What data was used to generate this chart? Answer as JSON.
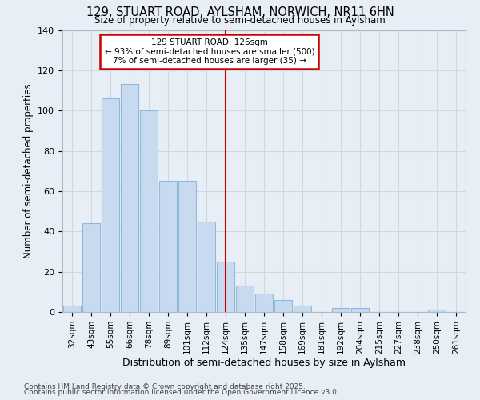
{
  "title1": "129, STUART ROAD, AYLSHAM, NORWICH, NR11 6HN",
  "title2": "Size of property relative to semi-detached houses in Aylsham",
  "xlabel": "Distribution of semi-detached houses by size in Aylsham",
  "ylabel": "Number of semi-detached properties",
  "categories": [
    "32sqm",
    "43sqm",
    "55sqm",
    "66sqm",
    "78sqm",
    "89sqm",
    "101sqm",
    "112sqm",
    "124sqm",
    "135sqm",
    "147sqm",
    "158sqm",
    "169sqm",
    "181sqm",
    "192sqm",
    "204sqm",
    "215sqm",
    "227sqm",
    "238sqm",
    "250sqm",
    "261sqm"
  ],
  "values": [
    3,
    44,
    106,
    113,
    100,
    65,
    65,
    45,
    25,
    13,
    9,
    6,
    3,
    0,
    2,
    2,
    0,
    0,
    0,
    1,
    0
  ],
  "bar_color": "#c8daf0",
  "bar_edge_color": "#90b8d8",
  "highlight_line_idx": 8,
  "annotation_title": "129 STUART ROAD: 126sqm",
  "annotation_line1": "← 93% of semi-detached houses are smaller (500)",
  "annotation_line2": "7% of semi-detached houses are larger (35) →",
  "annotation_box_color": "#cc0000",
  "grid_color": "#d0d8e0",
  "bg_color": "#e8eef6",
  "ylim": [
    0,
    140
  ],
  "yticks": [
    0,
    20,
    40,
    60,
    80,
    100,
    120,
    140
  ],
  "footnote1": "Contains HM Land Registry data © Crown copyright and database right 2025.",
  "footnote2": "Contains public sector information licensed under the Open Government Licence v3.0."
}
